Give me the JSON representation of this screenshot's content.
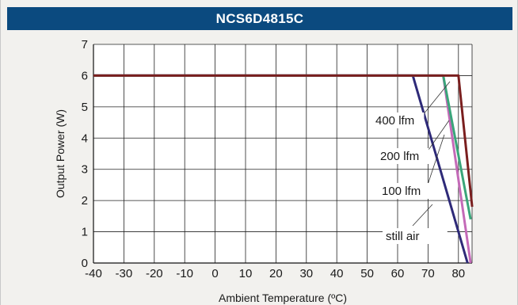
{
  "chart_data": {
    "type": "line",
    "title": "NCS6D4815C",
    "xlabel": "Ambient Temperature (ºC)",
    "ylabel": "Output Power (W)",
    "xlim": [
      -40,
      85
    ],
    "ylim": [
      0,
      7
    ],
    "x_ticks": [
      "-40",
      "-30",
      "-20",
      "-10",
      "0",
      "10",
      "20",
      "30",
      "40",
      "50",
      "60",
      "70",
      "80"
    ],
    "y_ticks": [
      "0",
      "1",
      "2",
      "3",
      "4",
      "5",
      "6",
      "7"
    ],
    "grid": true,
    "series": [
      {
        "name": "still air",
        "color": "#2e2a78",
        "points": [
          [
            -40,
            6
          ],
          [
            65,
            6
          ],
          [
            83,
            0
          ]
        ]
      },
      {
        "name": "100 lfm",
        "color": "#c46ab8",
        "points": [
          [
            -40,
            6
          ],
          [
            75,
            6
          ],
          [
            84,
            0
          ]
        ]
      },
      {
        "name": "200 lfm",
        "color": "#3aa57a",
        "points": [
          [
            -40,
            6
          ],
          [
            75,
            6
          ],
          [
            84,
            1.4
          ]
        ]
      },
      {
        "name": "400 lfm",
        "color": "#7a1f1f",
        "points": [
          [
            -40,
            6
          ],
          [
            80,
            6
          ],
          [
            84.5,
            1.8
          ]
        ]
      }
    ],
    "annotations": [
      {
        "text": "400 lfm",
        "series": "400 lfm"
      },
      {
        "text": "200 lfm",
        "series": "200 lfm"
      },
      {
        "text": "100 lfm",
        "series": "100 lfm"
      },
      {
        "text": "still air",
        "series": "still air"
      }
    ]
  }
}
